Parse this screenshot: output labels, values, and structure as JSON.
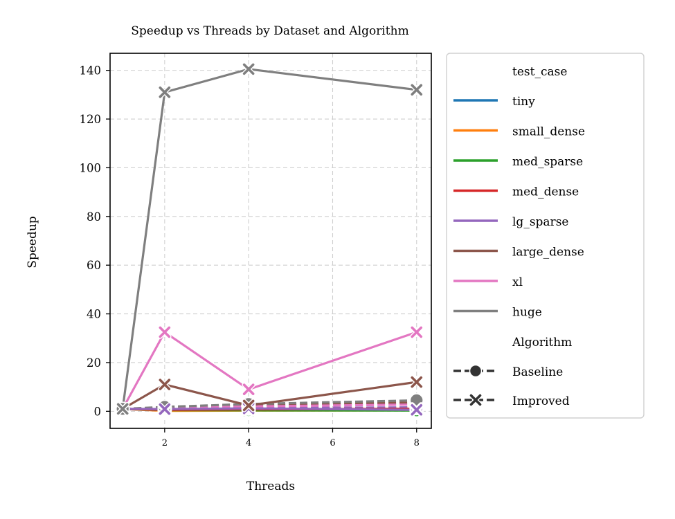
{
  "chart_data": {
    "type": "line",
    "title": "Speedup vs Threads by Dataset and Algorithm",
    "xlabel": "Threads",
    "ylabel": "Speedup",
    "x_ticks": [
      2,
      4,
      6,
      8
    ],
    "y_ticks": [
      0,
      20,
      40,
      60,
      80,
      100,
      120,
      140
    ],
    "xlim": [
      0.7,
      8.35
    ],
    "ylim": [
      -7,
      147
    ],
    "grid": true,
    "legend_position": "outside-right",
    "legend": {
      "hue_title": "test_case",
      "style_title": "Algorithm",
      "styles": [
        {
          "name": "Baseline",
          "marker": "circle"
        },
        {
          "name": "Improved",
          "marker": "x"
        }
      ]
    },
    "x": [
      1,
      2,
      4,
      8
    ],
    "series": [
      {
        "name": "tiny",
        "color": "#1f77b4",
        "baseline": [
          1,
          0.5,
          0.9,
          1.6
        ],
        "improved": [
          1,
          0.3,
          0.4,
          0.5
        ]
      },
      {
        "name": "small_dense",
        "color": "#ff7f0e",
        "baseline": [
          1,
          0.4,
          0.8,
          1.3
        ],
        "improved": [
          1,
          0.2,
          0.3,
          0.4
        ]
      },
      {
        "name": "med_sparse",
        "color": "#2ca02c",
        "baseline": [
          1,
          0.6,
          0.5,
          0.4
        ],
        "improved": [
          1,
          0.5,
          0.4,
          0.3
        ]
      },
      {
        "name": "med_dense",
        "color": "#d62728",
        "baseline": [
          1,
          0.8,
          1.1,
          1.3
        ],
        "improved": [
          1,
          0.6,
          0.8,
          1.0
        ]
      },
      {
        "name": "lg_sparse",
        "color": "#9467bd",
        "baseline": [
          1,
          1.1,
          1.4,
          1.6
        ],
        "improved": [
          1,
          0.9,
          1.2,
          0.6
        ]
      },
      {
        "name": "large_dense",
        "color": "#8c564b",
        "baseline": [
          1,
          1.6,
          2.6,
          3.6
        ],
        "improved": [
          1,
          11.0,
          2.4,
          12.0
        ]
      },
      {
        "name": "xl",
        "color": "#e377c2",
        "baseline": [
          1,
          1.3,
          2.0,
          2.8
        ],
        "improved": [
          1,
          32.5,
          9.0,
          32.5
        ]
      },
      {
        "name": "huge",
        "color": "#7f7f7f",
        "baseline": [
          1,
          1.8,
          3.0,
          4.5
        ],
        "improved": [
          1,
          131.0,
          140.5,
          132.0
        ]
      }
    ]
  }
}
